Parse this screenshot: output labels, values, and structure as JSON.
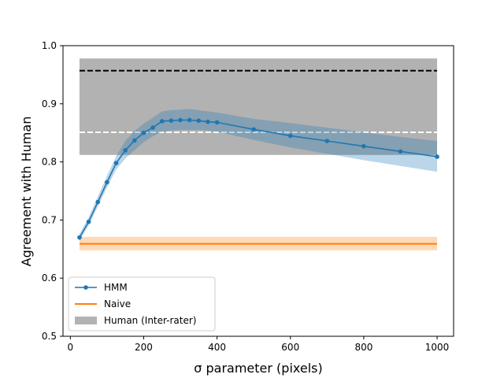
{
  "chart_data": {
    "type": "line",
    "xlabel": "σ parameter (pixels)",
    "ylabel": "Agreement with Human",
    "xlim": [
      -20,
      1045
    ],
    "ylim": [
      0.5,
      1.0
    ],
    "x_ticks": [
      0,
      200,
      400,
      600,
      800,
      1000
    ],
    "y_ticks": [
      0.5,
      0.6,
      0.7,
      0.8,
      0.9,
      1.0
    ],
    "x_tick_labels": [
      "0",
      "200",
      "400",
      "600",
      "800",
      "1000"
    ],
    "y_tick_labels": [
      "0.5",
      "0.6",
      "0.7",
      "0.8",
      "0.9",
      "1.0"
    ],
    "grid": false,
    "legend_position": "lower-left",
    "series": [
      {
        "name": "HMM",
        "kind": "line-markers",
        "color": "#1f77b4",
        "band_color": "#1f77b4",
        "x": [
          25,
          50,
          75,
          100,
          125,
          150,
          175,
          200,
          225,
          250,
          275,
          300,
          325,
          350,
          375,
          400,
          500,
          600,
          700,
          800,
          900,
          1000
        ],
        "y": [
          0.67,
          0.697,
          0.731,
          0.765,
          0.798,
          0.82,
          0.837,
          0.85,
          0.859,
          0.87,
          0.871,
          0.872,
          0.872,
          0.871,
          0.869,
          0.868,
          0.856,
          0.845,
          0.836,
          0.827,
          0.818,
          0.809
        ],
        "lower": [
          0.664,
          0.691,
          0.723,
          0.756,
          0.787,
          0.806,
          0.82,
          0.834,
          0.844,
          0.852,
          0.854,
          0.855,
          0.855,
          0.855,
          0.854,
          0.852,
          0.838,
          0.825,
          0.814,
          0.803,
          0.793,
          0.783
        ],
        "upper": [
          0.676,
          0.705,
          0.74,
          0.776,
          0.81,
          0.836,
          0.853,
          0.866,
          0.876,
          0.887,
          0.889,
          0.89,
          0.891,
          0.889,
          0.887,
          0.885,
          0.874,
          0.867,
          0.859,
          0.851,
          0.843,
          0.836
        ]
      },
      {
        "name": "Naive",
        "kind": "hline",
        "color": "#ff7f0e",
        "x_range": [
          25,
          1000
        ],
        "y": 0.659,
        "lower": 0.648,
        "upper": 0.671
      },
      {
        "name": "Human (Inter-rater)",
        "kind": "band",
        "color": "#b2b2b2",
        "x_range": [
          25,
          1000
        ],
        "lower": 0.812,
        "upper": 0.978,
        "mean_line": 0.851,
        "upper_line": 0.957
      }
    ]
  }
}
